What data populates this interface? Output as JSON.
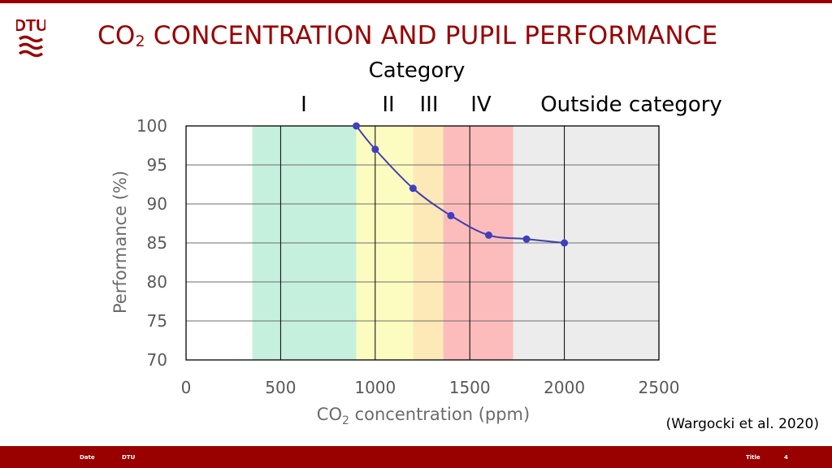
{
  "header": {
    "title_prefix": "CO",
    "title_sub": "2",
    "title_suffix": " CONCENTRATION AND PUPIL PERFORMANCE",
    "brand": "DTU"
  },
  "categories": {
    "heading": "Category",
    "labels": [
      "I",
      "II",
      "III",
      "IV",
      "Outside category"
    ]
  },
  "axes": {
    "ylabel": "Performance (%)",
    "xlabel_prefix": "CO",
    "xlabel_sub": "2",
    "xlabel_suffix": " concentration (ppm)"
  },
  "citation": "(Wargocki et al. 2020)",
  "footer": {
    "date": "Date",
    "org": "DTU",
    "title": "Title",
    "page": "4"
  },
  "colors": {
    "brand": "#990000",
    "line": "#3f3fae",
    "point": "#3f3fc0"
  },
  "chart_data": {
    "type": "scatter",
    "xlim": [
      0,
      2500
    ],
    "ylim": [
      70,
      100
    ],
    "xticks": [
      0,
      500,
      1000,
      1500,
      2000,
      2500
    ],
    "yticks": [
      70,
      75,
      80,
      85,
      90,
      95,
      100
    ],
    "grid": "horizontal and vertical major",
    "series": [
      {
        "x": [
          900,
          1000,
          1200,
          1400,
          1600,
          1800,
          2000
        ],
        "y": [
          100,
          97,
          92,
          88.5,
          86,
          85.5,
          85
        ]
      }
    ],
    "bands": [
      {
        "label": "I",
        "x_from": 350,
        "x_to": 900,
        "color": "#c6f0de"
      },
      {
        "label": "II",
        "x_from": 900,
        "x_to": 1200,
        "color": "#fdfcc0"
      },
      {
        "label": "III",
        "x_from": 1200,
        "x_to": 1360,
        "color": "#fde8b8"
      },
      {
        "label": "IV",
        "x_from": 1360,
        "x_to": 1730,
        "color": "#fdbcbc"
      },
      {
        "label": "Outside category",
        "x_from": 1730,
        "x_to": 2500,
        "color": "#ececec"
      }
    ]
  }
}
